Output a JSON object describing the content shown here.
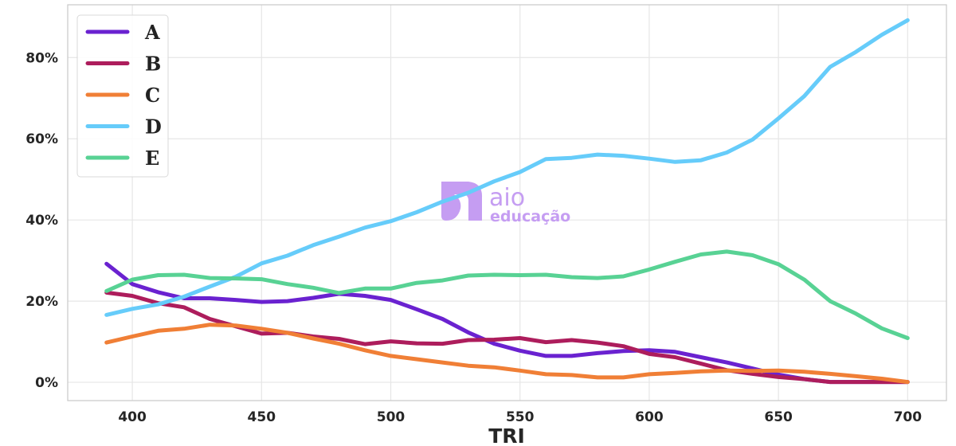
{
  "chart_data": {
    "type": "line",
    "title": "",
    "xlabel": "TRI",
    "ylabel": "",
    "xlim": [
      375,
      715
    ],
    "ylim": [
      -4.5,
      93
    ],
    "x_ticks": [
      400,
      450,
      500,
      550,
      600,
      650,
      700
    ],
    "y_ticks": [
      0,
      20,
      40,
      60,
      80
    ],
    "y_tick_labels": [
      "0%",
      "20%",
      "40%",
      "60%",
      "80%"
    ],
    "grid": true,
    "legend_position": "top-left",
    "x": [
      390,
      400,
      410,
      420,
      430,
      440,
      450,
      460,
      470,
      480,
      490,
      500,
      510,
      520,
      530,
      540,
      550,
      560,
      570,
      580,
      590,
      600,
      610,
      620,
      630,
      640,
      650,
      660,
      670,
      680,
      690,
      700
    ],
    "series": [
      {
        "name": "A",
        "color": "#6a22d0",
        "values": [
          29.2,
          24.2,
          22.2,
          20.7,
          20.7,
          20.3,
          19.8,
          20.0,
          20.8,
          21.8,
          21.3,
          20.3,
          18.0,
          15.6,
          12.3,
          9.5,
          7.8,
          6.5,
          6.5,
          7.2,
          7.7,
          7.9,
          7.5,
          6.2,
          4.9,
          3.4,
          1.9,
          0.8,
          0.1,
          0.1,
          0.1,
          0.1
        ]
      },
      {
        "name": "B",
        "color": "#ad1d5c",
        "values": [
          22.1,
          21.3,
          19.5,
          18.5,
          15.6,
          13.8,
          12.0,
          12.2,
          11.3,
          10.7,
          9.4,
          10.1,
          9.6,
          9.5,
          10.4,
          10.5,
          10.9,
          9.9,
          10.4,
          9.8,
          8.9,
          7.0,
          6.2,
          4.6,
          3.0,
          2.1,
          1.3,
          0.8,
          0.1,
          0.1,
          0.1,
          0.1
        ]
      },
      {
        "name": "C",
        "color": "#f07f36",
        "values": [
          9.8,
          11.3,
          12.7,
          13.2,
          14.2,
          14.0,
          13.2,
          12.2,
          10.8,
          9.5,
          7.9,
          6.5,
          5.7,
          4.9,
          4.1,
          3.7,
          2.9,
          2.0,
          1.8,
          1.2,
          1.2,
          2.0,
          2.3,
          2.7,
          2.9,
          2.8,
          2.9,
          2.6,
          2.1,
          1.5,
          0.9,
          0.1
        ]
      },
      {
        "name": "D",
        "color": "#66ccfa",
        "values": [
          16.6,
          18.1,
          19.2,
          21.1,
          23.6,
          26.0,
          29.3,
          31.2,
          33.8,
          35.9,
          38.1,
          39.7,
          41.9,
          44.5,
          46.7,
          49.5,
          51.8,
          55.0,
          55.3,
          56.1,
          55.8,
          55.1,
          54.3,
          54.7,
          56.6,
          59.8,
          65.0,
          70.5,
          77.7,
          81.4,
          85.6,
          89.2
        ]
      },
      {
        "name": "E",
        "color": "#58d294",
        "values": [
          22.5,
          25.3,
          26.4,
          26.5,
          25.7,
          25.6,
          25.4,
          24.2,
          23.3,
          22.0,
          23.1,
          23.1,
          24.5,
          25.1,
          26.3,
          26.5,
          26.4,
          26.5,
          25.9,
          25.7,
          26.1,
          27.8,
          29.7,
          31.5,
          32.2,
          31.3,
          29.1,
          25.3,
          20.0,
          16.9,
          13.3,
          10.9
        ]
      }
    ]
  },
  "watermark": {
    "line1": "aio",
    "line2": "educação",
    "color": "#c59df2"
  }
}
